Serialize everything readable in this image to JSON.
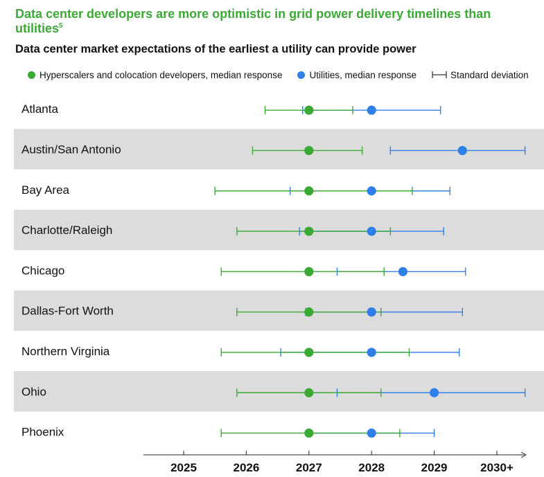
{
  "title": "Data center developers are more optimistic in grid power delivery timelines than utilities",
  "title_footnote": "5",
  "subtitle": "Data center market expectations of the earliest a utility can provide power",
  "colors": {
    "developers": "#3aaa35",
    "utilities": "#2f7fe8",
    "band": "#dcdcdc",
    "title": "#3aaa35"
  },
  "legend": {
    "developers": "Hyperscalers and colocation developers, median response",
    "utilities": "Utilities, median response",
    "sd": "Standard deviation"
  },
  "chart_data": {
    "type": "dot-range",
    "title": "Data center market expectations of the earliest a utility can provide power",
    "x_tick_values": [
      2025,
      2026,
      2027,
      2028,
      2029,
      2030
    ],
    "x_tick_labels": [
      "2025",
      "2026",
      "2027",
      "2028",
      "2029",
      "2030+"
    ],
    "xlim": [
      2024.35,
      2030.45
    ],
    "series": [
      {
        "name": "Hyperscalers and colocation developers, median response",
        "key": "developers"
      },
      {
        "name": "Utilities, median response",
        "key": "utilities"
      }
    ],
    "rows": [
      {
        "market": "Atlanta",
        "developers": {
          "median": 2027.0,
          "low": 2026.3,
          "high": 2027.7
        },
        "utilities": {
          "median": 2028.0,
          "low": 2026.9,
          "high": 2029.1
        }
      },
      {
        "market": "Austin/San Antonio",
        "developers": {
          "median": 2027.0,
          "low": 2026.1,
          "high": 2027.85
        },
        "utilities": {
          "median": 2029.45,
          "low": 2028.3,
          "high": 2030.45
        }
      },
      {
        "market": "Bay Area",
        "developers": {
          "median": 2027.0,
          "low": 2025.5,
          "high": 2028.65
        },
        "utilities": {
          "median": 2028.0,
          "low": 2026.7,
          "high": 2029.25
        }
      },
      {
        "market": "Charlotte/Raleigh",
        "developers": {
          "median": 2027.0,
          "low": 2025.85,
          "high": 2028.3
        },
        "utilities": {
          "median": 2028.0,
          "low": 2026.85,
          "high": 2029.15
        }
      },
      {
        "market": "Chicago",
        "developers": {
          "median": 2027.0,
          "low": 2025.6,
          "high": 2028.2
        },
        "utilities": {
          "median": 2028.5,
          "low": 2027.45,
          "high": 2029.5
        }
      },
      {
        "market": "Dallas-Fort Worth",
        "developers": {
          "median": 2027.0,
          "low": 2025.85,
          "high": 2028.15
        },
        "utilities": {
          "median": 2028.0,
          "low": 2026.95,
          "high": 2029.45
        }
      },
      {
        "market": "Northern Virginia",
        "developers": {
          "median": 2027.0,
          "low": 2025.6,
          "high": 2028.6
        },
        "utilities": {
          "median": 2028.0,
          "low": 2026.55,
          "high": 2029.4
        }
      },
      {
        "market": "Ohio",
        "developers": {
          "median": 2027.0,
          "low": 2025.85,
          "high": 2028.15
        },
        "utilities": {
          "median": 2029.0,
          "low": 2027.45,
          "high": 2030.45
        }
      },
      {
        "market": "Phoenix",
        "developers": {
          "median": 2027.0,
          "low": 2025.6,
          "high": 2028.45
        },
        "utilities": {
          "median": 2028.0,
          "low": 2027.0,
          "high": 2029.0
        }
      }
    ]
  }
}
